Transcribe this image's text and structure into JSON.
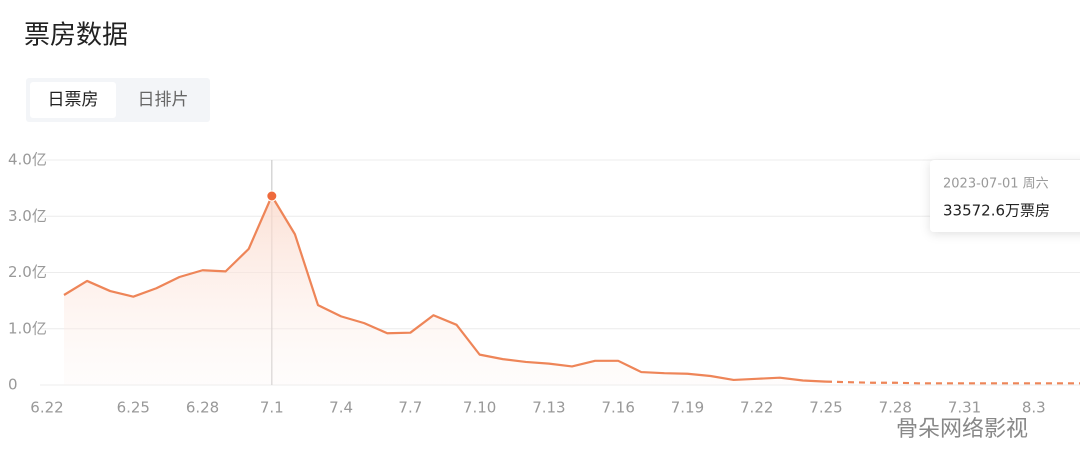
{
  "header": {
    "title": "票房数据",
    "tabs": [
      "日票房",
      "日排片"
    ],
    "active_tab": 0
  },
  "watermark": "骨朵网络影视",
  "chart_data": {
    "type": "line",
    "categories": [
      "6.22",
      null,
      null,
      "6.25",
      null,
      null,
      "6.28",
      null,
      null,
      "7.1",
      null,
      null,
      "7.4",
      null,
      null,
      "7.7",
      null,
      null,
      "7.10",
      null,
      null,
      "7.13",
      null,
      null,
      "7.16",
      null,
      null,
      "7.19",
      null,
      null,
      "7.22",
      null,
      null,
      "7.25",
      null,
      null,
      "7.28",
      null,
      null,
      "7.31",
      null,
      null,
      "8.3",
      null,
      null
    ],
    "series": [
      {
        "color": "#ee8558",
        "dashed": false,
        "values": [
          1.6,
          1.85,
          1.67,
          1.57,
          1.72,
          1.92,
          2.04,
          2.02,
          2.42,
          3.36,
          2.68,
          1.42,
          1.22,
          1.1,
          0.92,
          0.93,
          1.24,
          1.07,
          0.54,
          0.46,
          0.41,
          0.38,
          0.33,
          0.43,
          0.43,
          0.23,
          0.21,
          0.2,
          0.16,
          0.09,
          0.11,
          0.13,
          0.08,
          0.06,
          null,
          null,
          null,
          null,
          null,
          null,
          null,
          null,
          null,
          null,
          null
        ]
      },
      {
        "color": "#ee8558",
        "dashed": true,
        "values": [
          null,
          null,
          null,
          null,
          null,
          null,
          null,
          null,
          null,
          null,
          null,
          null,
          null,
          null,
          null,
          null,
          null,
          null,
          null,
          null,
          null,
          null,
          null,
          null,
          null,
          null,
          null,
          null,
          null,
          null,
          null,
          null,
          null,
          0.06,
          0.05,
          0.04,
          0.04,
          0.03,
          0.03,
          0.03,
          0.03,
          0.03,
          0.03,
          0.03,
          0.03
        ]
      }
    ],
    "ylim": [
      0,
      4
    ],
    "yticks": [
      0,
      {
        "value": 1,
        "label": "1.0亿"
      },
      {
        "value": 2,
        "label": "2.0亿"
      },
      {
        "value": 3,
        "label": "3.0亿"
      },
      {
        "value": 4,
        "label": "4.0亿"
      }
    ],
    "grid": true,
    "tooltip": {
      "index": 9,
      "date": "2023-07-01 周六",
      "value_text": "33572.6万票房"
    }
  }
}
